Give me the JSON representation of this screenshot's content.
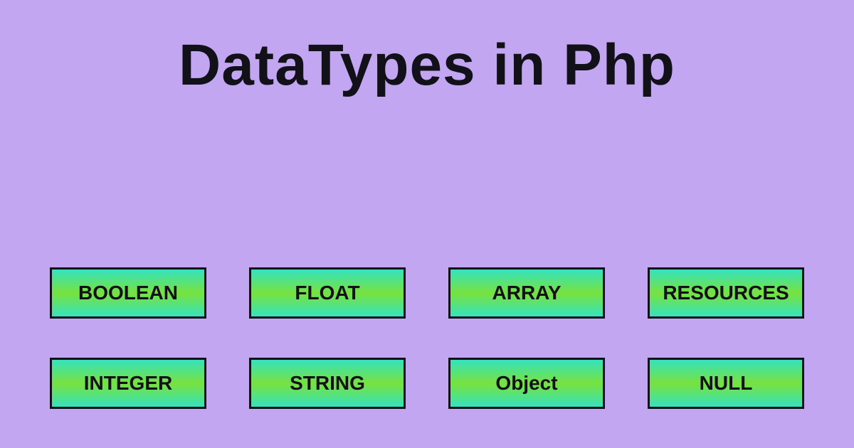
{
  "background_color": "#c2a6f2",
  "title": {
    "text": "DataTypes in Php",
    "color": "#12111a",
    "fontsize": 82
  },
  "box_style": {
    "border_color": "#12111a",
    "border_width": 3,
    "text_color": "#12111a",
    "fontsize": 28,
    "gradient_top": "#35e2c0",
    "gradient_mid": "#78e23d",
    "gradient_bottom": "#35e2c0"
  },
  "items": [
    {
      "label": "BOOLEAN"
    },
    {
      "label": "FLOAT"
    },
    {
      "label": "ARRAY"
    },
    {
      "label": "RESOURCES"
    },
    {
      "label": "INTEGER"
    },
    {
      "label": "STRING"
    },
    {
      "label": "Object"
    },
    {
      "label": "NULL"
    }
  ]
}
